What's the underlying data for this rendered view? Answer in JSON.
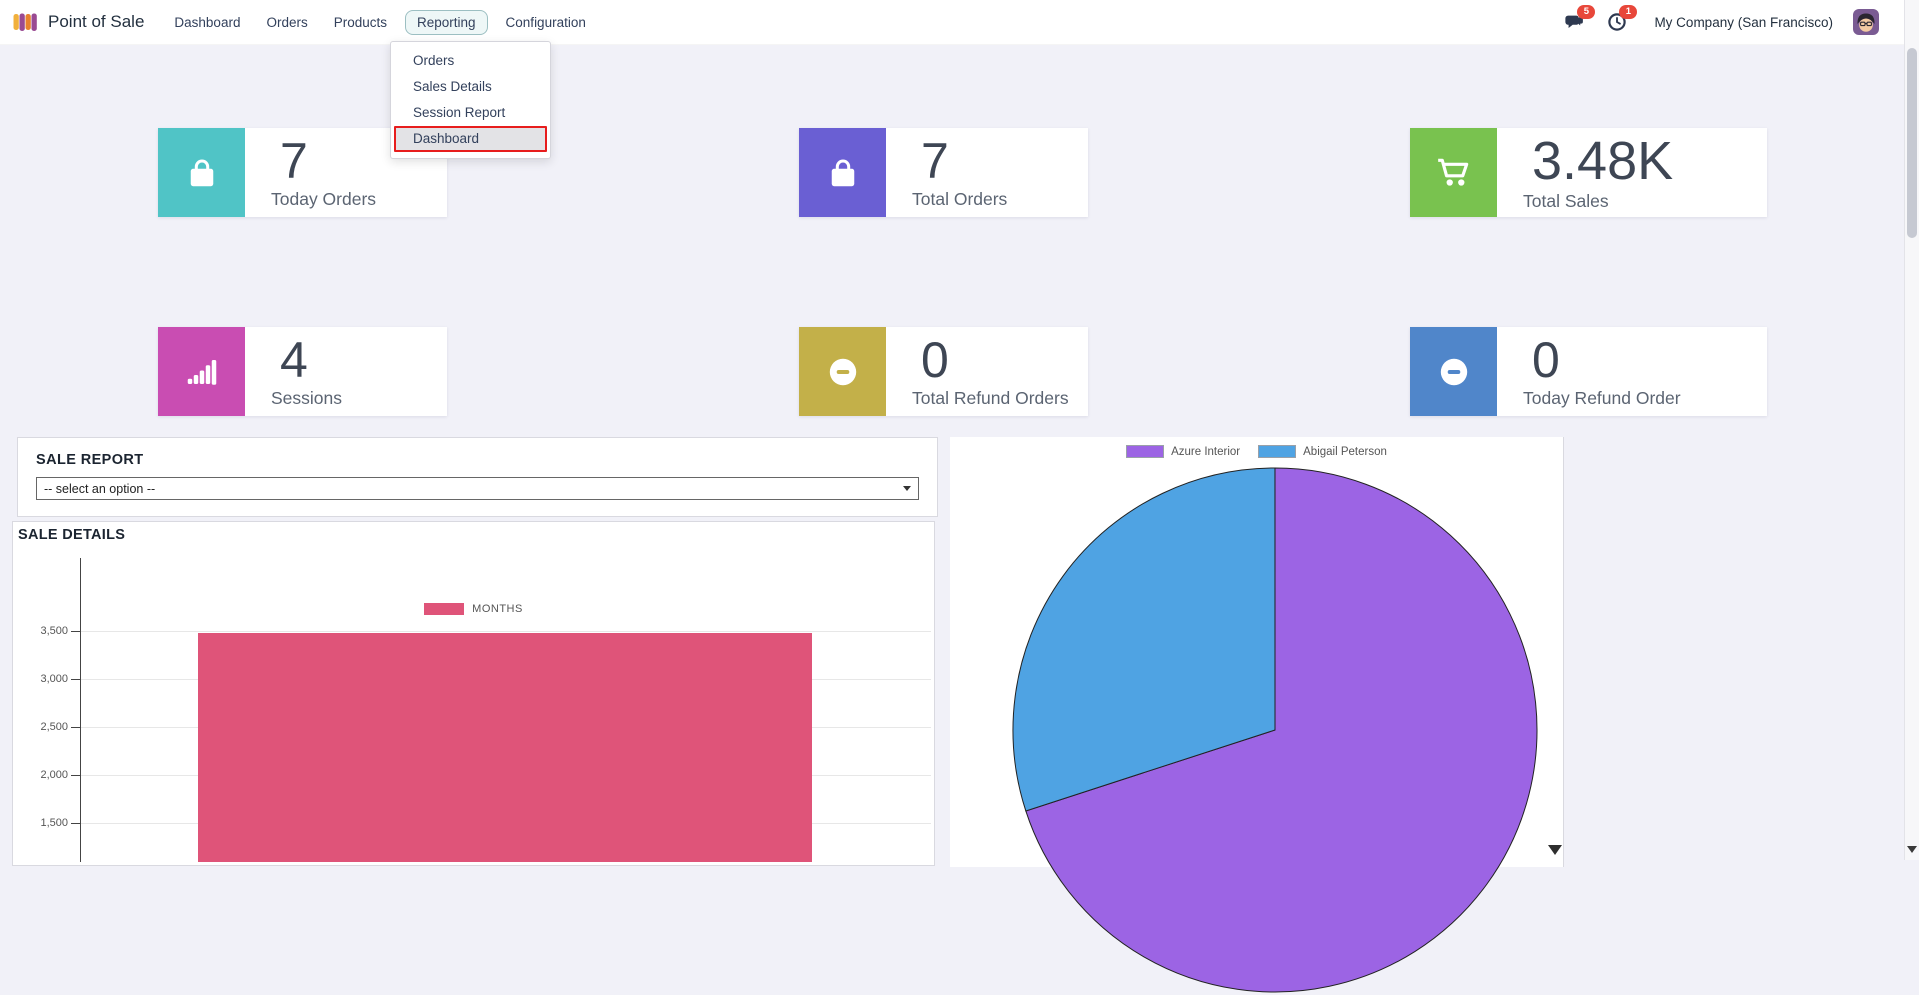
{
  "navbar": {
    "app_name": "Point of Sale",
    "items": [
      {
        "label": "Dashboard",
        "active": false
      },
      {
        "label": "Orders",
        "active": false
      },
      {
        "label": "Products",
        "active": false
      },
      {
        "label": "Reporting",
        "active": true
      },
      {
        "label": "Configuration",
        "active": false
      }
    ],
    "messages_badge": "5",
    "activities_badge": "1",
    "company": "My Company (San Francisco)"
  },
  "reporting_menu": {
    "items": [
      {
        "label": "Orders",
        "highlighted": false
      },
      {
        "label": "Sales Details",
        "highlighted": false
      },
      {
        "label": "Session Report",
        "highlighted": false
      },
      {
        "label": "Dashboard",
        "highlighted": true
      }
    ],
    "highlight_color": "#e71d1d"
  },
  "kpi_cards": [
    {
      "value": "7",
      "label": "Today Orders",
      "icon": "shopping-bag",
      "color": "#50c4c6"
    },
    {
      "value": "7",
      "label": "Total Orders",
      "icon": "shopping-bag",
      "color": "#6a5fd3"
    },
    {
      "value": "3.48K",
      "label": "Total Sales",
      "icon": "shopping-cart",
      "color": "#79c24f"
    },
    {
      "value": "4",
      "label": "Sessions",
      "icon": "signal-bars",
      "color": "#c94db2"
    },
    {
      "value": "0",
      "label": "Total Refund Orders",
      "icon": "minus-circle",
      "color": "#c3b049"
    },
    {
      "value": "0",
      "label": "Today Refund Order",
      "icon": "minus-circle",
      "color": "#5086ca"
    }
  ],
  "sale_report": {
    "title": "SALE REPORT",
    "select_value": "-- select an option --"
  },
  "sale_details_title": "SALE DETAILS",
  "chart_data": [
    {
      "type": "bar",
      "title": "SALE DETAILS",
      "legend": [
        "MONTHS"
      ],
      "legend_position": "top",
      "series": [
        {
          "name": "MONTHS",
          "values": [
            3480
          ]
        }
      ],
      "categories": [
        ""
      ],
      "bar_color": "#df5479",
      "xlabel": "",
      "ylabel": "",
      "grid": true,
      "yticks": {
        "values": [
          3500,
          3000,
          2500,
          2000,
          1500
        ],
        "labels": [
          "3,500",
          "3,000",
          "2,500",
          "2,000",
          "1,500"
        ]
      }
    },
    {
      "type": "pie",
      "labels": [
        "Azure Interior",
        "Abigail Peterson"
      ],
      "values_percent": [
        70,
        30
      ],
      "colors": [
        "#9c64e4",
        "#4fa3e3"
      ],
      "legend_position": "top"
    }
  ]
}
